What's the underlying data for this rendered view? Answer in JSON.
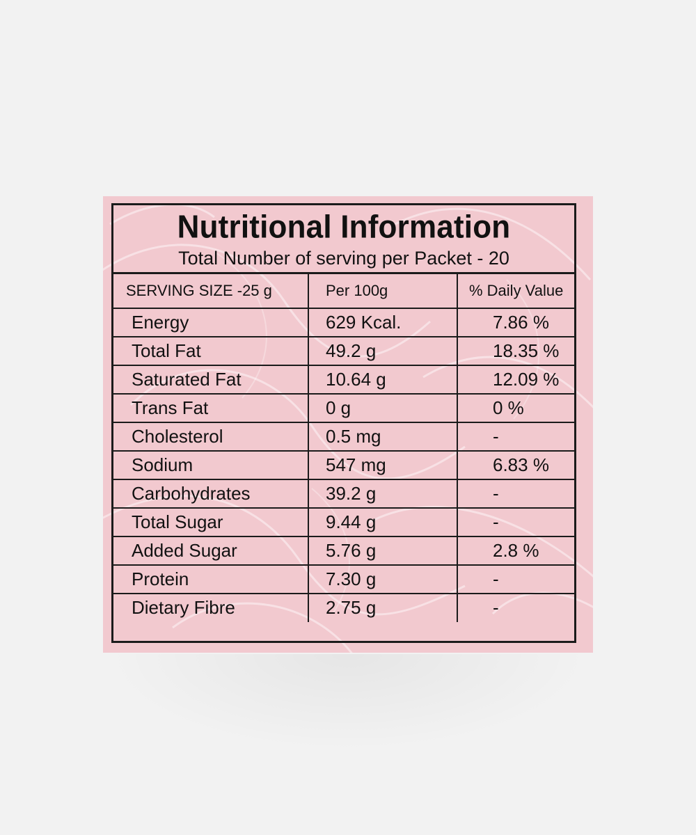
{
  "label": {
    "title": "Nutritional Information",
    "subtitle": "Total Number of serving per Packet - 20",
    "headers": [
      "SERVING SIZE -25 g",
      "Per 100g",
      "% Daily Value"
    ],
    "rows": [
      {
        "nutrient": "Energy",
        "per100g": "629 Kcal.",
        "dv": "7.86 %"
      },
      {
        "nutrient": "Total Fat",
        "per100g": "49.2 g",
        "dv": "18.35 %"
      },
      {
        "nutrient": "Saturated Fat",
        "per100g": "10.64 g",
        "dv": "12.09 %"
      },
      {
        "nutrient": "Trans Fat",
        "per100g": "0 g",
        "dv": "0 %"
      },
      {
        "nutrient": "Cholesterol",
        "per100g": "0.5 mg",
        "dv": "-"
      },
      {
        "nutrient": "Sodium",
        "per100g": "547 mg",
        "dv": "6.83 %"
      },
      {
        "nutrient": "Carbohydrates",
        "per100g": "39.2 g",
        "dv": "-"
      },
      {
        "nutrient": "Total Sugar",
        "per100g": "9.44 g",
        "dv": "-"
      },
      {
        "nutrient": "Added Sugar",
        "per100g": "5.76 g",
        "dv": "2.8 %"
      },
      {
        "nutrient": "Protein",
        "per100g": "7.30 g",
        "dv": "-"
      },
      {
        "nutrient": "Dietary Fibre",
        "per100g": "2.75 g",
        "dv": "-"
      }
    ]
  },
  "colors": {
    "background": "#f2f2f2",
    "label_pink": "#f2c9cf",
    "ink": "#111111"
  }
}
